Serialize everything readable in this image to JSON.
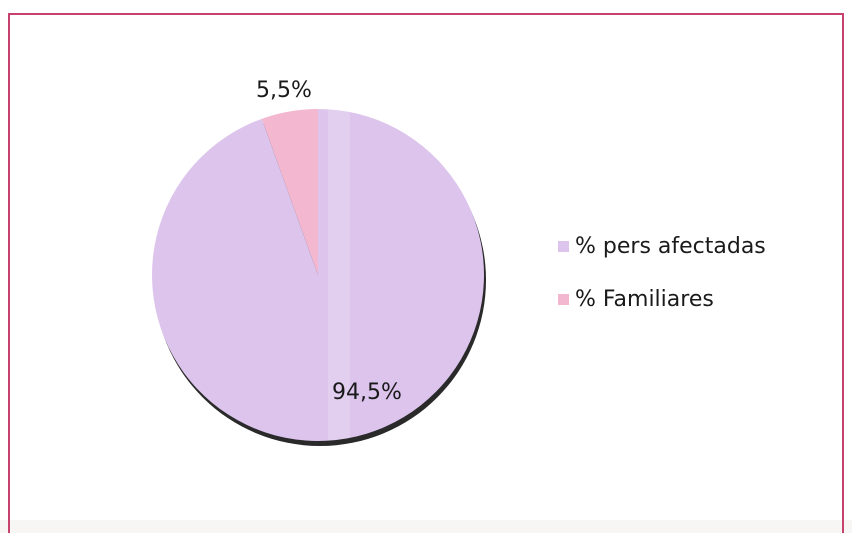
{
  "chart_data": {
    "type": "pie",
    "title": "",
    "slices": [
      {
        "name": "% pers afectadas",
        "value": 94.5,
        "label": "94,5%",
        "color": "#dcc4ec"
      },
      {
        "name": "% Familiares",
        "value": 5.5,
        "label": "5,5%",
        "color": "#f3b8cf"
      }
    ],
    "legend_position": "right",
    "shadow_color": "#2a2a2a",
    "frame_color": "#c8406e"
  }
}
